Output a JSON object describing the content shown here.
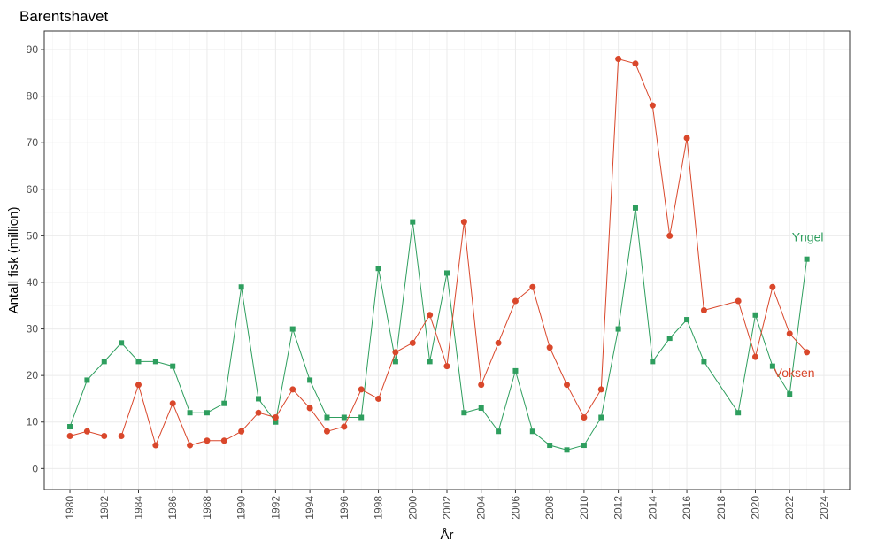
{
  "chart_data": {
    "type": "line",
    "title": "Barentshavet",
    "xlabel": "År",
    "ylabel": "Antall fisk (million)",
    "xlim": [
      1978.5,
      2025.5
    ],
    "ylim": [
      -4.5,
      94
    ],
    "x_ticks": [
      1980,
      1982,
      1984,
      1986,
      1988,
      1990,
      1992,
      1994,
      1996,
      1998,
      2000,
      2002,
      2004,
      2006,
      2008,
      2010,
      2012,
      2014,
      2016,
      2018,
      2020,
      2022,
      2024
    ],
    "y_ticks": [
      0,
      10,
      20,
      30,
      40,
      50,
      60,
      70,
      80,
      90
    ],
    "grid": true,
    "series": [
      {
        "name": "Yngel",
        "color": "#2e9e5e",
        "marker": "square",
        "x": [
          1980,
          1981,
          1982,
          1983,
          1984,
          1985,
          1986,
          1987,
          1988,
          1989,
          1990,
          1991,
          1992,
          1993,
          1994,
          1995,
          1996,
          1997,
          1998,
          1999,
          2000,
          2001,
          2002,
          2003,
          2004,
          2005,
          2006,
          2007,
          2008,
          2009,
          2010,
          2011,
          2012,
          2013,
          2014,
          2015,
          2016,
          2017,
          2019,
          2020,
          2021,
          2022,
          2023
        ],
        "values": [
          9,
          19,
          23,
          27,
          23,
          23,
          22,
          12,
          12,
          14,
          39,
          15,
          10,
          30,
          19,
          11,
          11,
          11,
          43,
          23,
          53,
          23,
          42,
          12,
          13,
          8,
          21,
          8,
          5,
          4,
          5,
          11,
          30,
          56,
          23,
          28,
          32,
          23,
          12,
          33,
          22,
          16,
          45
        ]
      },
      {
        "name": "Voksen",
        "color": "#d9472b",
        "marker": "circle",
        "x": [
          1980,
          1981,
          1982,
          1983,
          1984,
          1985,
          1986,
          1987,
          1988,
          1989,
          1990,
          1991,
          1992,
          1993,
          1994,
          1995,
          1996,
          1997,
          1998,
          1999,
          2000,
          2001,
          2002,
          2003,
          2004,
          2005,
          2006,
          2007,
          2008,
          2009,
          2010,
          2011,
          2012,
          2013,
          2014,
          2015,
          2016,
          2017,
          2019,
          2020,
          2021,
          2022,
          2023
        ],
        "values": [
          7,
          8,
          7,
          7,
          18,
          5,
          14,
          5,
          6,
          6,
          8,
          12,
          11,
          17,
          13,
          8,
          9,
          17,
          15,
          25,
          27,
          33,
          22,
          53,
          18,
          27,
          36,
          39,
          26,
          18,
          11,
          17,
          88,
          87,
          78,
          50,
          71,
          34,
          36,
          24,
          39,
          29,
          25
        ]
      }
    ]
  }
}
